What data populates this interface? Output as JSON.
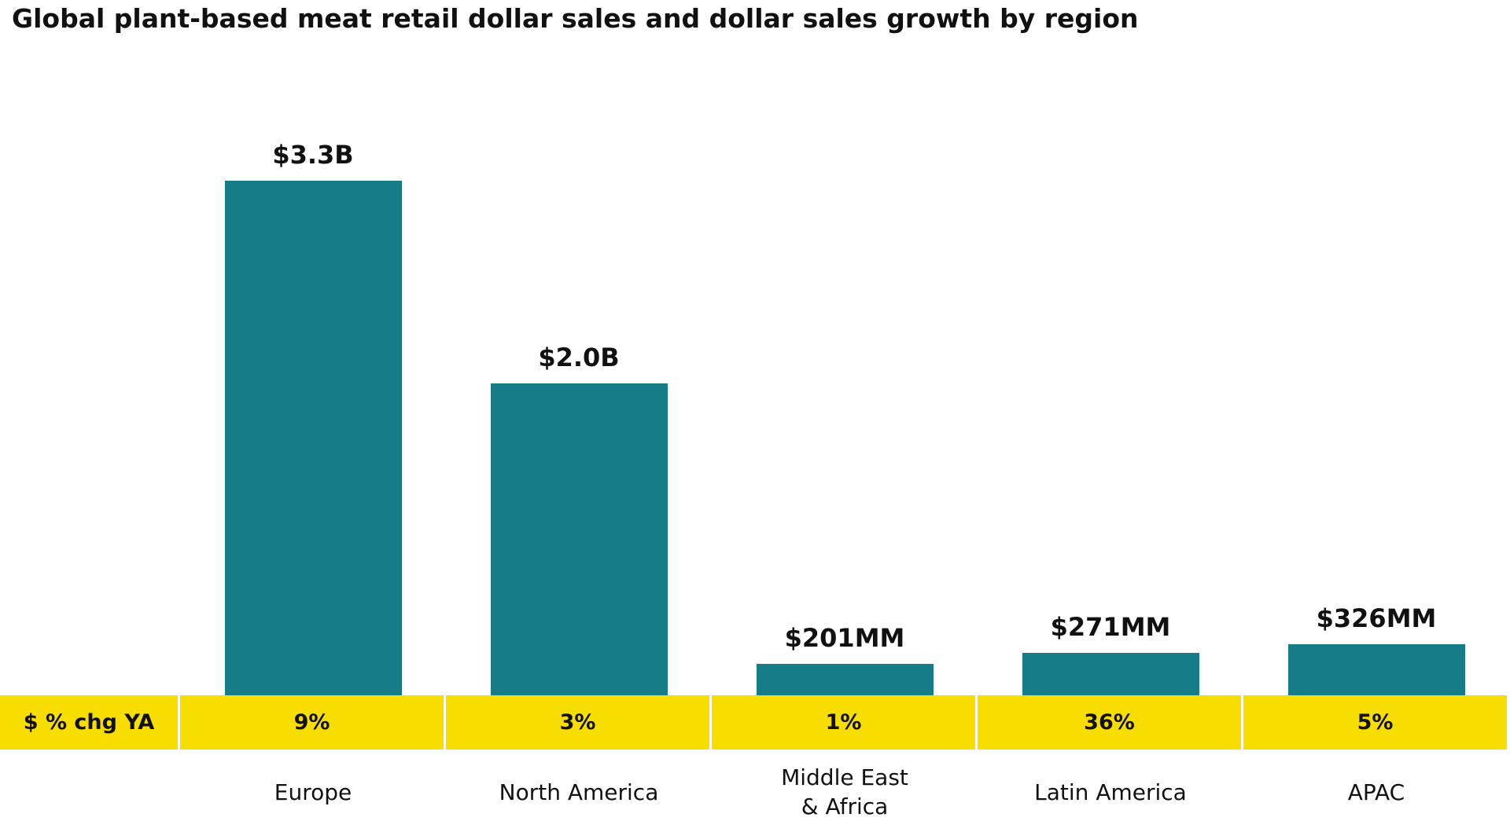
{
  "chart_data": {
    "type": "bar",
    "title": "Global plant-based meat retail dollar sales and dollar sales growth by region",
    "categories": [
      "Europe",
      "North America",
      "Middle East\n& Africa",
      "Latin America",
      "APAC"
    ],
    "values": [
      3300,
      2000,
      201,
      271,
      326
    ],
    "value_labels": [
      "$3.3B",
      "$2.0B",
      "$201MM",
      "$271MM",
      "$326MM"
    ],
    "color": "#167c87",
    "growth": {
      "name": "$ % chg YA",
      "values": [
        9,
        3,
        1,
        36,
        5
      ],
      "value_labels": [
        "9%",
        "3%",
        "1%",
        "36%",
        "5%"
      ],
      "color": "#f7dd00"
    }
  }
}
